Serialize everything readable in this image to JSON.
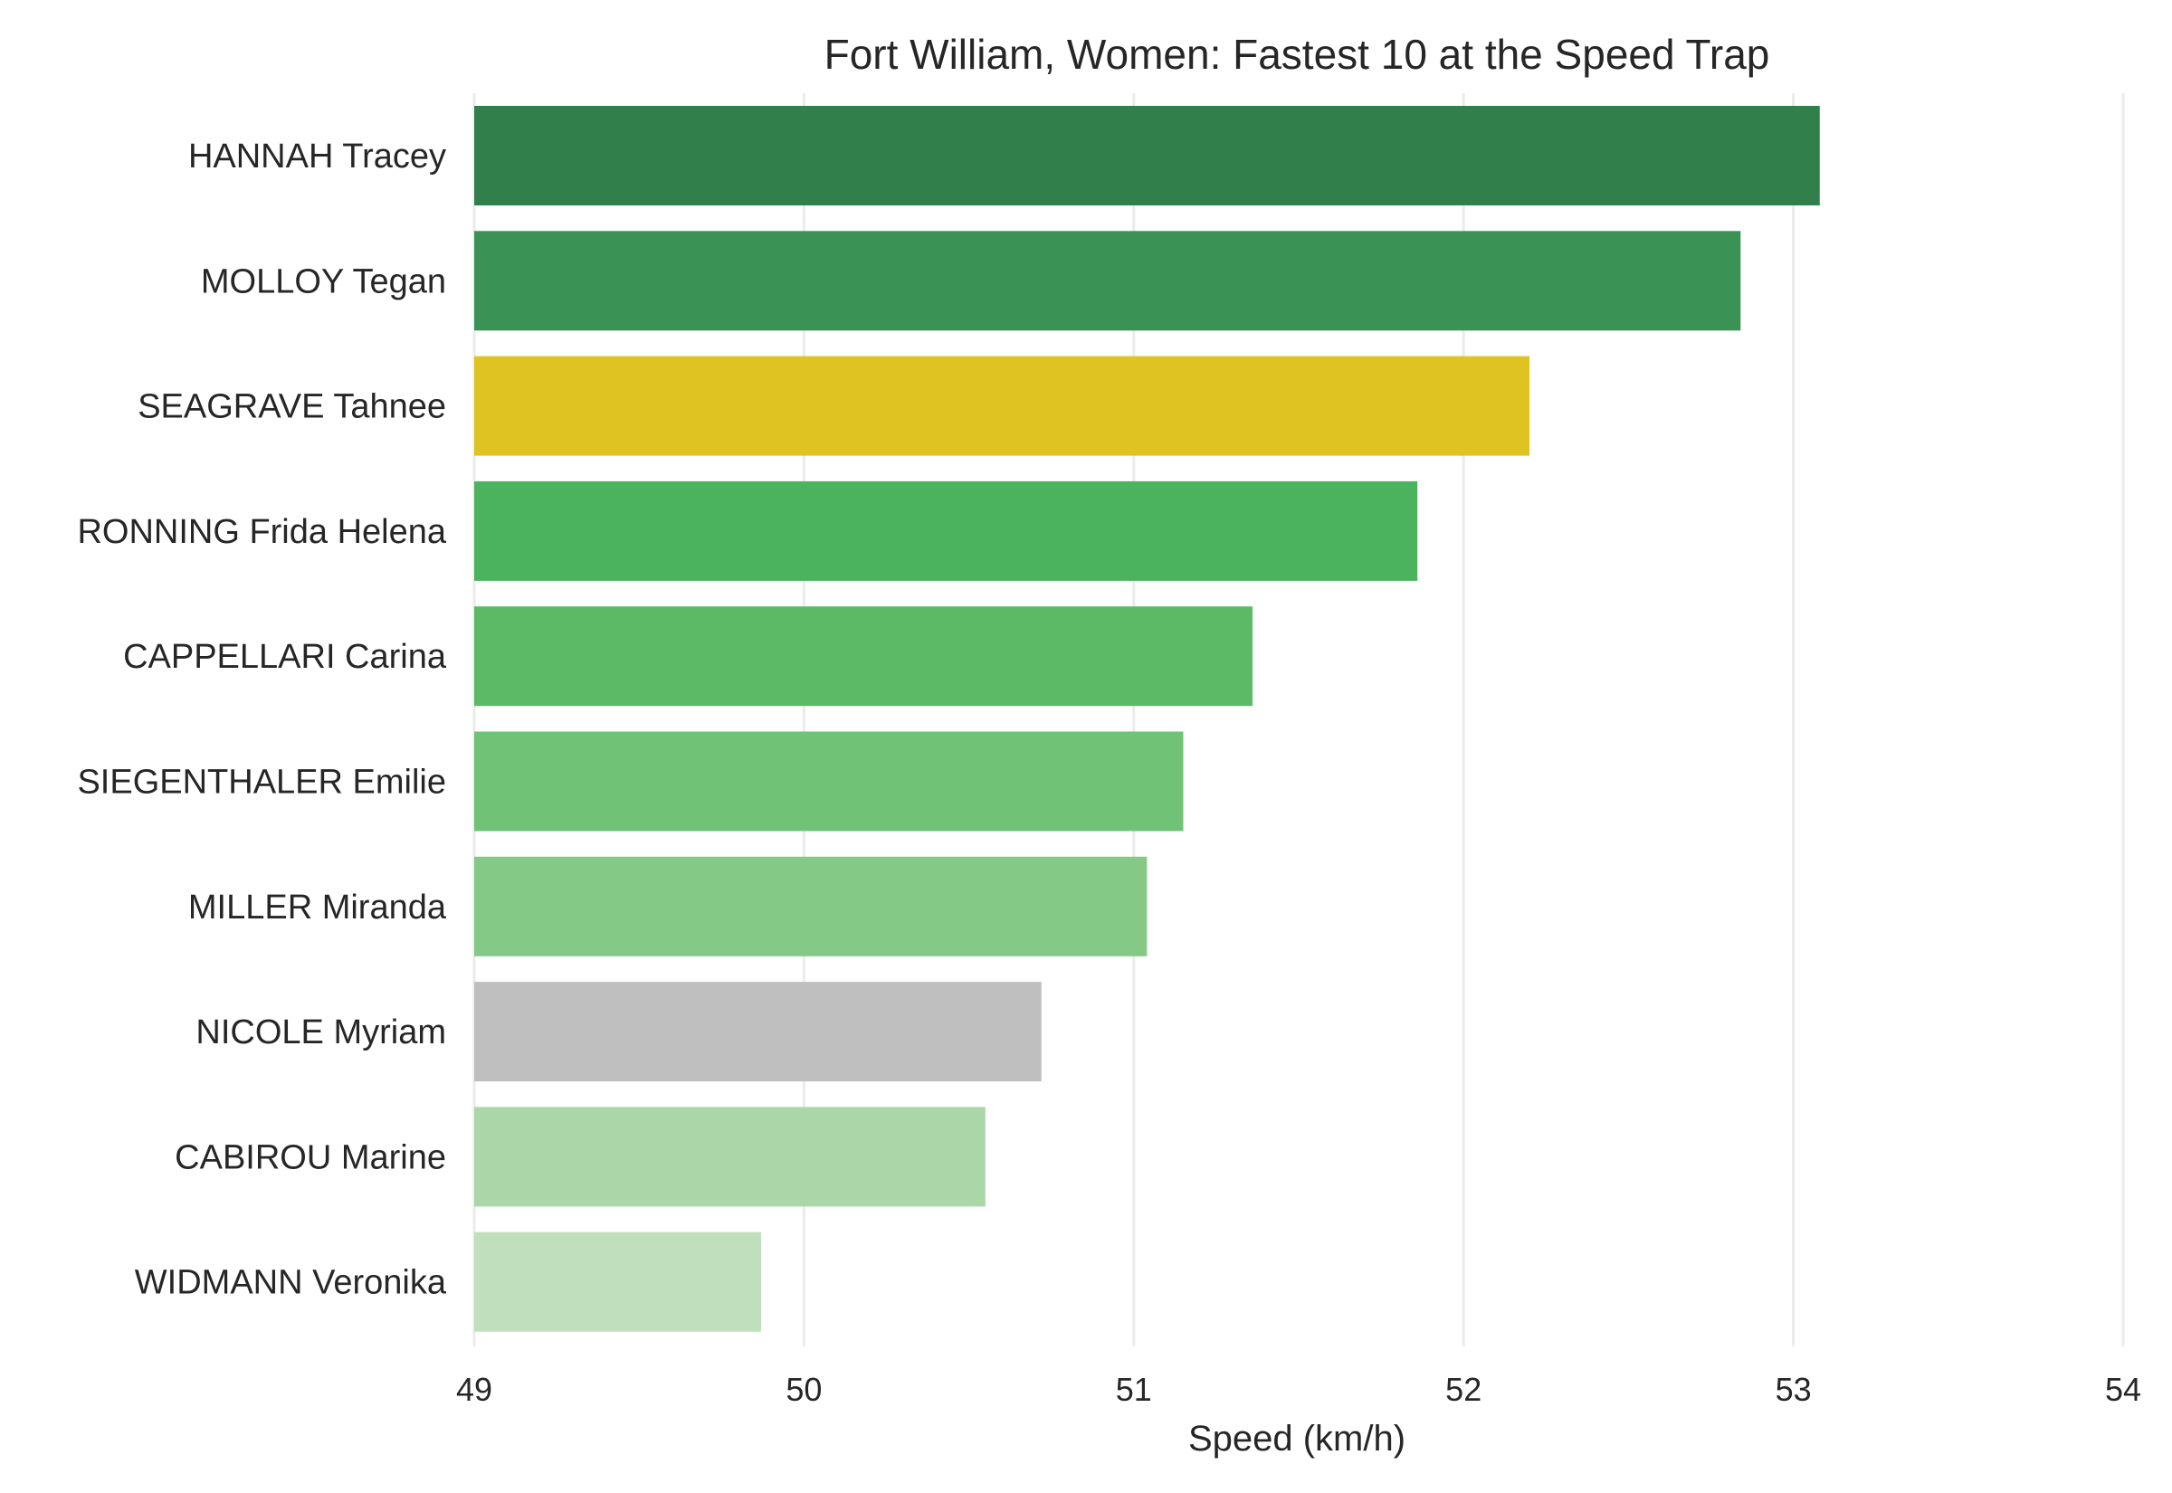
{
  "chart_data": {
    "type": "bar",
    "orientation": "horizontal",
    "title": "Fort William, Women: Fastest 10 at the Speed Trap",
    "xlabel": "Speed (km/h)",
    "ylabel": "",
    "xlim": [
      49,
      54
    ],
    "xticks": [
      49,
      50,
      51,
      52,
      53,
      54
    ],
    "grid": "vertical",
    "categories": [
      "HANNAH Tracey",
      "MOLLOY Tegan",
      "SEAGRAVE Tahnee",
      "RONNING Frida Helena",
      "CAPPELLARI Carina",
      "SIEGENTHALER Emilie",
      "MILLER Miranda",
      "NICOLE Myriam",
      "CABIROU Marine",
      "WIDMANN Veronika"
    ],
    "values": [
      53.08,
      52.84,
      52.2,
      51.86,
      51.36,
      51.15,
      51.04,
      50.72,
      50.55,
      49.87
    ],
    "colors": [
      "#31804c",
      "#3a9355",
      "#dfc320",
      "#4bb25d",
      "#5cb966",
      "#70c276",
      "#84c986",
      "#bfbfbf",
      "#aad6a8",
      "#c0dfbc"
    ]
  }
}
